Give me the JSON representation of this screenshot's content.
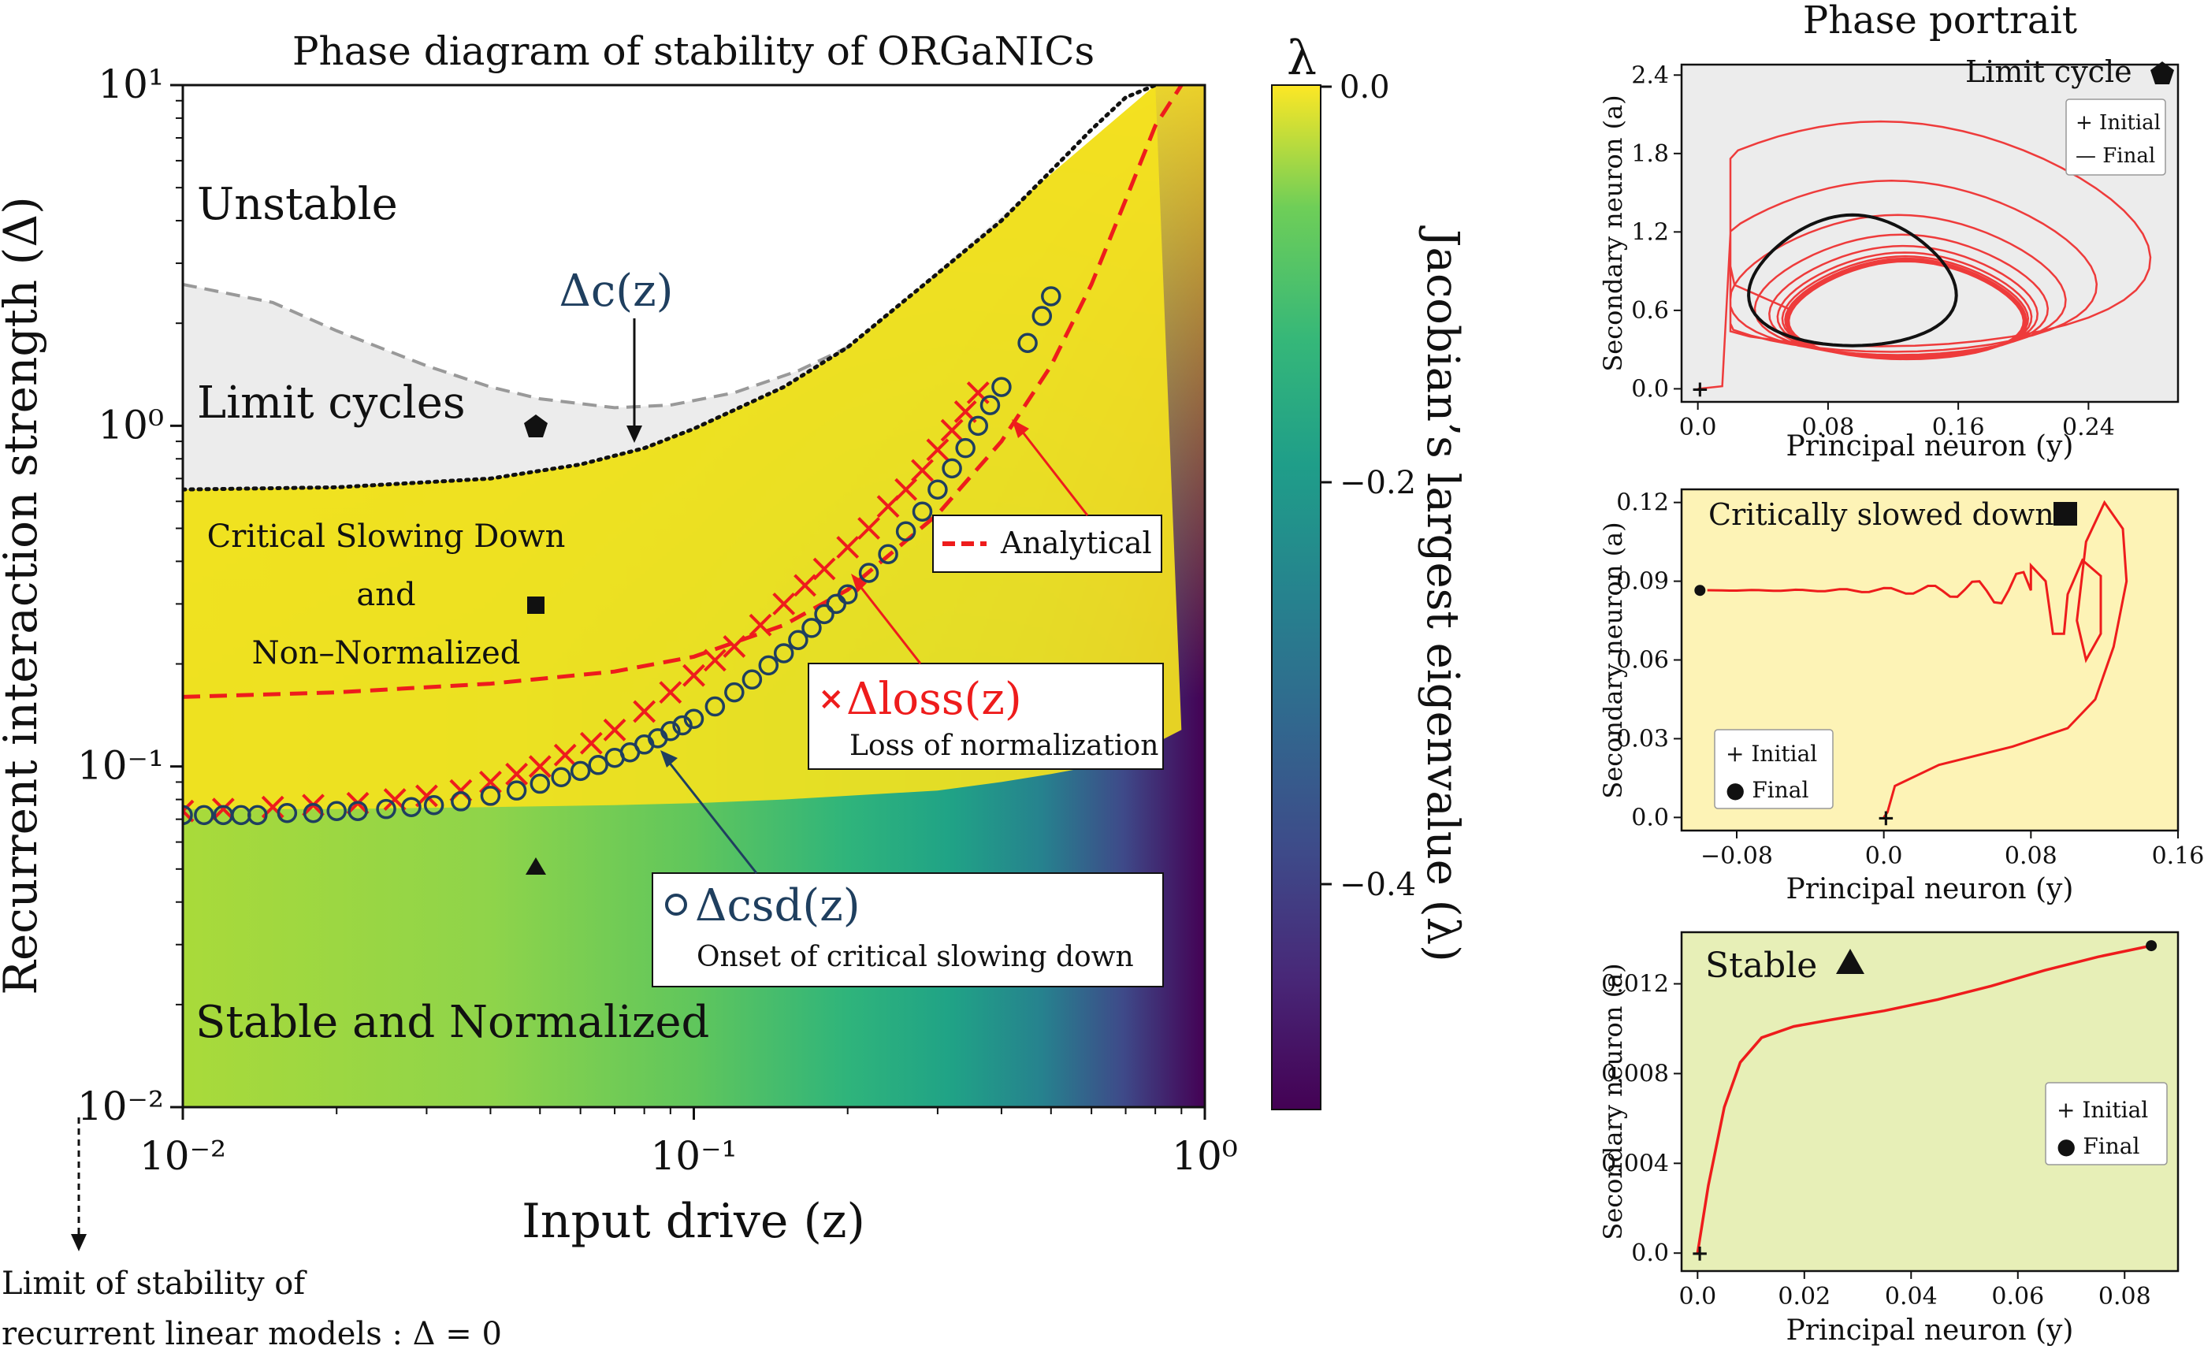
{
  "main_title": "Phase diagram of stability of ORGaNICs",
  "x_axis_label": "Input drive (z)",
  "y_axis_label": "Recurrent interaction strength (Δ)",
  "x_ticks": [
    "10⁻²",
    "10⁻¹",
    "10⁰"
  ],
  "y_ticks": [
    "10¹",
    "10⁰",
    "10⁻¹",
    "10⁻²"
  ],
  "colorbar": {
    "symbol": "λ",
    "label": "Jacobian’s largest eigenvalue (λ)",
    "ticks": [
      "0.0",
      "−0.2",
      "−0.4"
    ],
    "range": [
      -0.55,
      0.0
    ]
  },
  "regions": {
    "unstable": "Unstable",
    "limit_cycles": "Limit cycles",
    "csd_line1": "Critical Slowing Down",
    "csd_line2": "and",
    "csd_line3": "Non–Normalized",
    "stable": "Stable and Normalized"
  },
  "annotations": {
    "delta_c": "Δc(z)",
    "delta_loss": "Δloss(z)",
    "loss_desc": "Loss of normalization",
    "delta_csd": "Δcsd(z)",
    "csd_desc": "Onset of critical slowing down",
    "analytical": "Analytical",
    "limit_note_line1": "Limit of stability of",
    "limit_note_line2": "recurrent linear models : Δ = 0"
  },
  "chart_data": [
    {
      "type": "heatmap",
      "title": "Phase diagram of stability of ORGaNICs",
      "xlabel": "Input drive (z)",
      "ylabel": "Recurrent interaction strength (Δ)",
      "xscale": "log",
      "yscale": "log",
      "xlim": [
        0.01,
        1.0
      ],
      "ylim": [
        0.01,
        10.0
      ],
      "colorbar_label": "Jacobian’s largest eigenvalue (λ)",
      "colorbar_range": [
        -0.55,
        0.0
      ],
      "series": [
        {
          "name": "Analytical",
          "kind": "dashed-line",
          "color": "#ee1c1c",
          "x": [
            0.01,
            0.02,
            0.04,
            0.07,
            0.1,
            0.15,
            0.2,
            0.3,
            0.4,
            0.5,
            0.6,
            0.7,
            0.8,
            0.9
          ],
          "y": [
            0.16,
            0.165,
            0.175,
            0.19,
            0.21,
            0.26,
            0.33,
            0.55,
            0.9,
            1.5,
            2.6,
            4.6,
            7.6,
            10.0
          ]
        },
        {
          "name": "Δloss(z)",
          "kind": "x-markers",
          "color": "#ee1c1c",
          "x": [
            0.01,
            0.012,
            0.015,
            0.018,
            0.022,
            0.026,
            0.03,
            0.035,
            0.04,
            0.045,
            0.05,
            0.056,
            0.063,
            0.07,
            0.08,
            0.09,
            0.1,
            0.11,
            0.12,
            0.135,
            0.15,
            0.165,
            0.18,
            0.2,
            0.22,
            0.24,
            0.26,
            0.28,
            0.3,
            0.32,
            0.34,
            0.36
          ],
          "y": [
            0.074,
            0.075,
            0.076,
            0.077,
            0.078,
            0.08,
            0.082,
            0.085,
            0.09,
            0.095,
            0.1,
            0.108,
            0.117,
            0.128,
            0.145,
            0.165,
            0.185,
            0.205,
            0.225,
            0.26,
            0.3,
            0.34,
            0.38,
            0.44,
            0.5,
            0.58,
            0.65,
            0.74,
            0.85,
            0.97,
            1.1,
            1.25
          ]
        },
        {
          "name": "Δcsd(z)",
          "kind": "o-markers",
          "color": "#1f3f5f",
          "x": [
            0.01,
            0.011,
            0.012,
            0.013,
            0.014,
            0.016,
            0.018,
            0.02,
            0.022,
            0.025,
            0.028,
            0.031,
            0.035,
            0.04,
            0.045,
            0.05,
            0.055,
            0.06,
            0.065,
            0.07,
            0.075,
            0.08,
            0.085,
            0.09,
            0.095,
            0.1,
            0.11,
            0.12,
            0.13,
            0.14,
            0.15,
            0.16,
            0.17,
            0.18,
            0.19,
            0.2,
            0.22,
            0.24,
            0.26,
            0.28,
            0.3,
            0.32,
            0.34,
            0.36,
            0.38,
            0.4,
            0.45,
            0.48,
            0.5
          ],
          "y": [
            0.072,
            0.072,
            0.072,
            0.072,
            0.072,
            0.073,
            0.073,
            0.074,
            0.074,
            0.075,
            0.076,
            0.077,
            0.079,
            0.082,
            0.085,
            0.089,
            0.093,
            0.097,
            0.101,
            0.106,
            0.11,
            0.116,
            0.121,
            0.127,
            0.132,
            0.138,
            0.15,
            0.165,
            0.18,
            0.198,
            0.215,
            0.235,
            0.255,
            0.28,
            0.3,
            0.32,
            0.37,
            0.42,
            0.49,
            0.56,
            0.65,
            0.75,
            0.86,
            1.0,
            1.15,
            1.3,
            1.75,
            2.1,
            2.4
          ]
        },
        {
          "name": "Δc(z)",
          "kind": "dotted-line",
          "color": "#111111",
          "x": [
            0.01,
            0.02,
            0.04,
            0.06,
            0.08,
            0.1,
            0.15,
            0.2,
            0.3,
            0.4,
            0.5,
            0.6,
            0.7,
            0.8
          ],
          "y": [
            0.65,
            0.66,
            0.7,
            0.77,
            0.86,
            0.98,
            1.3,
            1.7,
            2.8,
            4.0,
            5.6,
            7.4,
            9.2,
            10.0
          ]
        },
        {
          "name": "",
          "kind": "grey-dashed-line",
          "color": "#999999",
          "x": [
            0.01,
            0.015,
            0.02,
            0.03,
            0.04,
            0.05,
            0.07,
            0.09,
            0.12,
            0.16,
            0.2
          ],
          "y": [
            2.6,
            2.3,
            1.9,
            1.5,
            1.3,
            1.2,
            1.13,
            1.15,
            1.25,
            1.45,
            1.7
          ]
        }
      ],
      "markers": [
        {
          "shape": "pentagon",
          "x": 0.05,
          "y": 1.0
        },
        {
          "shape": "square",
          "x": 0.05,
          "y": 0.3
        },
        {
          "shape": "triangle",
          "x": 0.05,
          "y": 0.05
        }
      ]
    },
    {
      "type": "line",
      "title": "Phase portrait",
      "panel_label": "Limit cycle",
      "xlabel": "Principal neuron (y)",
      "ylabel": "Secondary neuron (a)",
      "xlim": [
        -0.01,
        0.295
      ],
      "ylim": [
        -0.1,
        2.48
      ],
      "xticks": [
        "0.0",
        "0.08",
        "0.16",
        "0.24"
      ],
      "yticks": [
        "0.0",
        "0.6",
        "1.2",
        "1.8",
        "2.4"
      ],
      "xtick_values": [
        0.0,
        0.08,
        0.16,
        0.24
      ],
      "ytick_values": [
        0.0,
        0.6,
        1.2,
        1.8,
        2.4
      ],
      "legend": [
        "+ Initial",
        "— Final"
      ],
      "legend_position": "upper-right",
      "background": "#ececec"
    },
    {
      "type": "line",
      "panel_label": "Critically slowed down",
      "xlabel": "Principal neuron (y)",
      "ylabel": "Secondary neuron (a)",
      "xlim": [
        -0.11,
        0.16
      ],
      "ylim": [
        -0.005,
        0.125
      ],
      "xticks": [
        "−0.08",
        "0.0",
        "0.08",
        "0.16"
      ],
      "yticks": [
        "0.0",
        "0.03",
        "0.06",
        "0.09",
        "0.12"
      ],
      "xtick_values": [
        -0.08,
        0.0,
        0.08,
        0.16
      ],
      "ytick_values": [
        0.0,
        0.03,
        0.06,
        0.09,
        0.12
      ],
      "legend": [
        "+ Initial",
        "● Final"
      ],
      "legend_position": "lower-left",
      "background": "#fdf3b6"
    },
    {
      "type": "line",
      "panel_label": "Stable",
      "xlabel": "Principal neuron (y)",
      "ylabel": "Secondary neuron (a)",
      "xlim": [
        -0.003,
        0.09
      ],
      "ylim": [
        -0.0008,
        0.0143
      ],
      "xticks": [
        "0.0",
        "0.02",
        "0.04",
        "0.06",
        "0.08"
      ],
      "yticks": [
        "0.0",
        "0.004",
        "0.008",
        "0.012"
      ],
      "xtick_values": [
        0.0,
        0.02,
        0.04,
        0.06,
        0.08
      ],
      "ytick_values": [
        0.0,
        0.004,
        0.008,
        0.012
      ],
      "x": [
        0.0,
        0.002,
        0.005,
        0.008,
        0.012,
        0.018,
        0.025,
        0.035,
        0.045,
        0.055,
        0.065,
        0.075,
        0.085
      ],
      "y": [
        0.0,
        0.003,
        0.0065,
        0.0085,
        0.0096,
        0.0101,
        0.0104,
        0.0108,
        0.0113,
        0.0119,
        0.0126,
        0.0132,
        0.0137
      ],
      "legend": [
        "+ Initial",
        "● Final"
      ],
      "legend_position": "center-right",
      "background": "#e7efb7"
    }
  ],
  "colors": {
    "red": "#ee1c1c",
    "navy": "#1f3f5f",
    "limit_bg": "#ececec",
    "csd_bg": "#fdf3b6",
    "stable_bg": "#e7efb7"
  }
}
